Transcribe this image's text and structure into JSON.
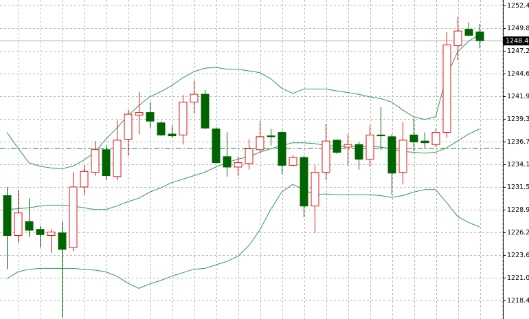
{
  "chart_data": {
    "type": "candlestick",
    "open": [
      1230.5,
      1225.9,
      1227.5,
      1226.6,
      1225.9,
      1226.2,
      1224.5,
      1231.5,
      1233.2,
      1235.8,
      1232.7,
      1237.0,
      1239.8,
      1240.1,
      1238.9,
      1237.6,
      1237.5,
      1241.3,
      1242.2,
      1238.2,
      1235.0,
      1233.8,
      1234.2,
      1235.8,
      1237.4,
      1237.8,
      1234.0,
      1234.9,
      1229.3,
      1233.2,
      1236.9,
      1236.1,
      1236.4,
      1234.7,
      1237.5,
      1237.3,
      1233.2,
      1237.5,
      1236.8,
      1236.4,
      1237.8,
      1247.8,
      1249.7,
      1249.4
    ],
    "high": [
      1231.5,
      1231.1,
      1230.2,
      1227.0,
      1226.6,
      1227.5,
      1233.2,
      1234.0,
      1236.8,
      1236.3,
      1239.2,
      1240.4,
      1242.5,
      1241.3,
      1239.1,
      1238.6,
      1242.1,
      1243.8,
      1242.7,
      1238.4,
      1237.8,
      1235.0,
      1237.0,
      1239.1,
      1238.2,
      1238.0,
      1235.2,
      1235.1,
      1234.0,
      1238.8,
      1237.0,
      1237.6,
      1236.7,
      1238.6,
      1240.7,
      1237.6,
      1239.0,
      1239.4,
      1237.8,
      1238.2,
      1249.4,
      1251.1,
      1250.5,
      1250.3
    ],
    "low": [
      1222.0,
      1225.1,
      1225.7,
      1224.5,
      1223.9,
      1216.4,
      1224.1,
      1230.6,
      1232.8,
      1232.3,
      1232.3,
      1235.1,
      1237.6,
      1238.3,
      1237.4,
      1237.2,
      1236.4,
      1240.0,
      1238.2,
      1234.2,
      1232.7,
      1232.8,
      1233.5,
      1235.5,
      1236.3,
      1233.0,
      1233.9,
      1228.0,
      1226.2,
      1232.3,
      1235.3,
      1234.0,
      1233.5,
      1233.9,
      1235.8,
      1230.6,
      1231.8,
      1235.6,
      1235.9,
      1236.1,
      1237.2,
      1246.1,
      1248.9,
      1247.5
    ],
    "close": [
      1225.9,
      1228.5,
      1226.5,
      1226.0,
      1226.3,
      1224.3,
      1231.5,
      1233.3,
      1235.8,
      1232.8,
      1236.9,
      1239.9,
      1240.1,
      1239.1,
      1237.5,
      1237.4,
      1241.3,
      1242.2,
      1238.3,
      1234.3,
      1233.8,
      1234.3,
      1235.9,
      1237.3,
      1237.3,
      1234.0,
      1234.9,
      1229.3,
      1233.2,
      1236.8,
      1235.5,
      1236.4,
      1234.7,
      1237.5,
      1237.4,
      1233.1,
      1236.9,
      1236.7,
      1236.6,
      1237.8,
      1247.9,
      1249.5,
      1249.0,
      1248.4
    ],
    "upper_band": [
      1237.8,
      1236.0,
      1234.3,
      1233.9,
      1233.7,
      1233.6,
      1233.9,
      1234.6,
      1235.5,
      1237.0,
      1238.3,
      1239.7,
      1240.9,
      1241.9,
      1242.5,
      1243.2,
      1244.1,
      1244.8,
      1245.2,
      1245.3,
      1245.1,
      1245.1,
      1244.9,
      1244.7,
      1244.0,
      1242.9,
      1242.3,
      1242.8,
      1242.8,
      1242.8,
      1242.6,
      1242.4,
      1242.2,
      1241.9,
      1241.7,
      1241.3,
      1240.4,
      1239.6,
      1239.3,
      1239.6,
      1244.3,
      1247.1,
      1248.3,
      1249.1
    ],
    "middle_band": [
      1228.9,
      1229.0,
      1229.1,
      1229.3,
      1229.4,
      1229.4,
      1229.3,
      1229.1,
      1228.9,
      1228.9,
      1229.3,
      1229.8,
      1230.2,
      1230.9,
      1231.4,
      1232.0,
      1232.4,
      1232.8,
      1233.2,
      1233.8,
      1234.3,
      1234.7,
      1235.0,
      1235.5,
      1235.9,
      1236.3,
      1236.6,
      1236.6,
      1236.5,
      1236.3,
      1236.2,
      1236.2,
      1236.2,
      1236.2,
      1236.1,
      1235.9,
      1235.6,
      1235.5,
      1235.4,
      1235.5,
      1236.0,
      1236.8,
      1237.6,
      1238.2
    ],
    "lower_band": [
      1220.9,
      1221.7,
      1222.0,
      1222.1,
      1222.1,
      1222.1,
      1222.1,
      1222.0,
      1221.9,
      1221.7,
      1221.2,
      1220.4,
      1219.8,
      1220.3,
      1220.7,
      1221.2,
      1221.6,
      1222.0,
      1222.1,
      1222.5,
      1222.9,
      1223.5,
      1224.7,
      1226.5,
      1228.9,
      1230.9,
      1231.8,
      1231.2,
      1230.6,
      1230.7,
      1230.6,
      1230.6,
      1230.6,
      1230.6,
      1230.5,
      1230.3,
      1230.5,
      1230.9,
      1231.2,
      1231.2,
      1229.7,
      1228.1,
      1227.4,
      1226.9
    ],
    "up_color": "#e01010",
    "down_color": "#006400",
    "band_color": "#2e9a55",
    "reference_line": 1236.0,
    "last_price": {
      "value": 1248.4,
      "label": "1248.40"
    },
    "ylim": [
      1216.26,
      1253.08
    ],
    "yticks": [
      1252.45,
      1249.85,
      {
        "value": 1247.2,
        "label": "1247.20"
      },
      {
        "value": 1244.6,
        "label": "1244.60"
      },
      1241.95,
      1239.35,
      {
        "value": 1236.7,
        "label": "1236.70"
      },
      {
        "value": 1234.1,
        "label": "1234.10"
      },
      {
        "value": 1231.5,
        "label": "1231.50"
      },
      {
        "value": 1228.9,
        "label": "1228.90"
      },
      1226.25,
      1223.65,
      {
        "value": 1221,
        "label": "1221.00"
      },
      {
        "value": 1218.4,
        "label": "1218.40"
      }
    ],
    "grid": true
  }
}
